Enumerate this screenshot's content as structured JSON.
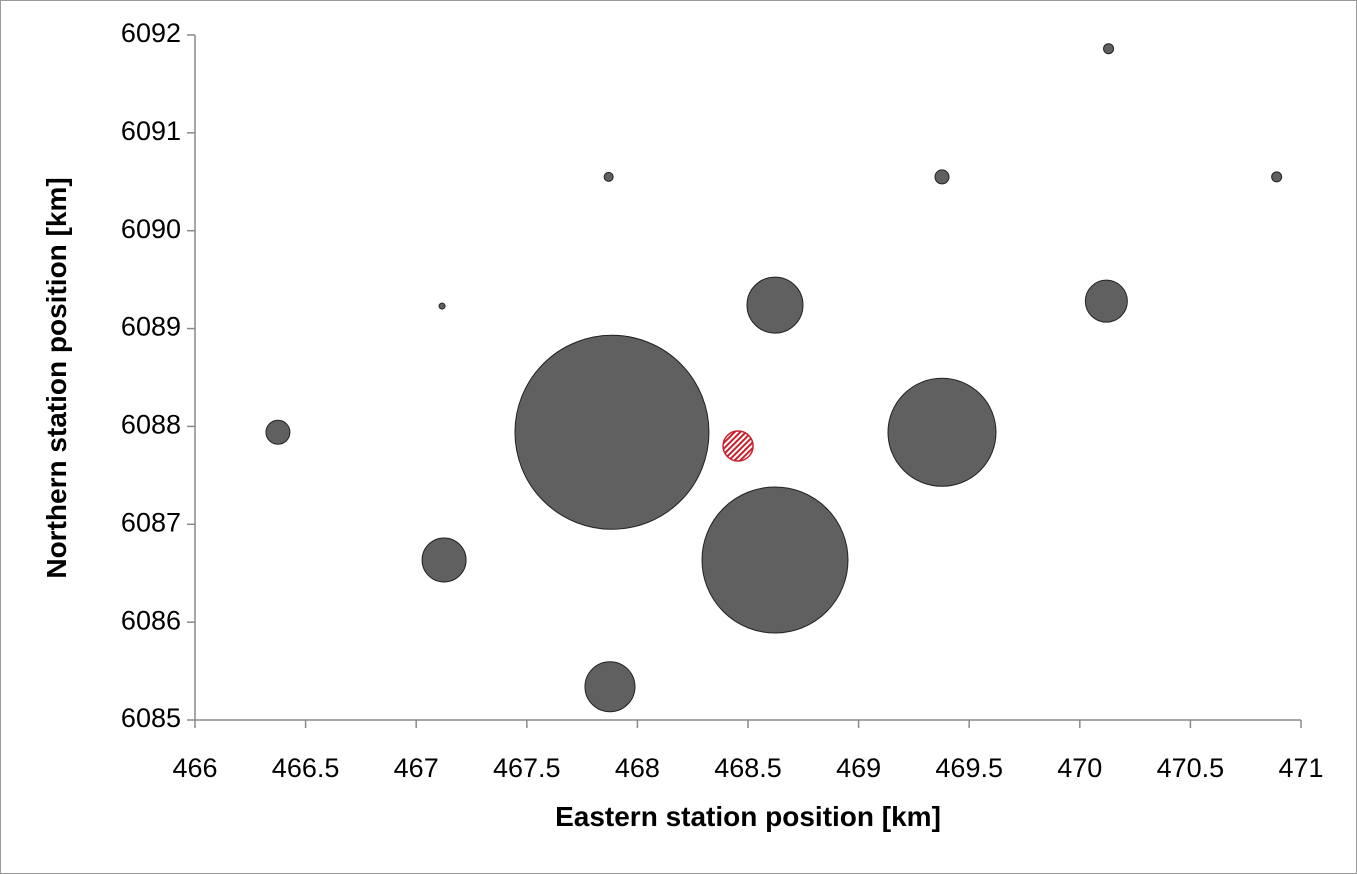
{
  "chart_data": {
    "type": "bubble",
    "x_label": "Eastern station position [km]",
    "y_label": "Northern station position [km]",
    "xlim": [
      466,
      471
    ],
    "xticks": [
      466,
      466.5,
      467,
      467.5,
      468,
      468.5,
      469,
      469.5,
      470,
      470.5,
      471
    ],
    "ylim": [
      6085,
      6092
    ],
    "yticks": [
      6085,
      6086,
      6087,
      6088,
      6089,
      6090,
      6091,
      6092
    ],
    "grid": false,
    "series": [
      {
        "color": "#606060",
        "x": [
          466.375,
          467.117,
          467.87,
          467.126,
          467.885,
          467.876,
          468.622,
          468.622,
          469.377,
          469.377,
          470.12,
          470.13,
          470.89
        ],
        "values": [
          6087.94,
          6089.23,
          6090.55,
          6086.635,
          6087.94,
          6085.34,
          6089.24,
          6086.635,
          6090.55,
          6087.94,
          6089.28,
          6091.86,
          6090.55
        ],
        "sizes": [
          12,
          3,
          4.5,
          22,
          97,
          25,
          28,
          73,
          7,
          54,
          21,
          5,
          5
        ]
      },
      {
        "color": "#c8202c",
        "hatch": true,
        "x": [
          468.455
        ],
        "values": [
          6087.8
        ],
        "sizes": [
          15
        ]
      }
    ]
  }
}
